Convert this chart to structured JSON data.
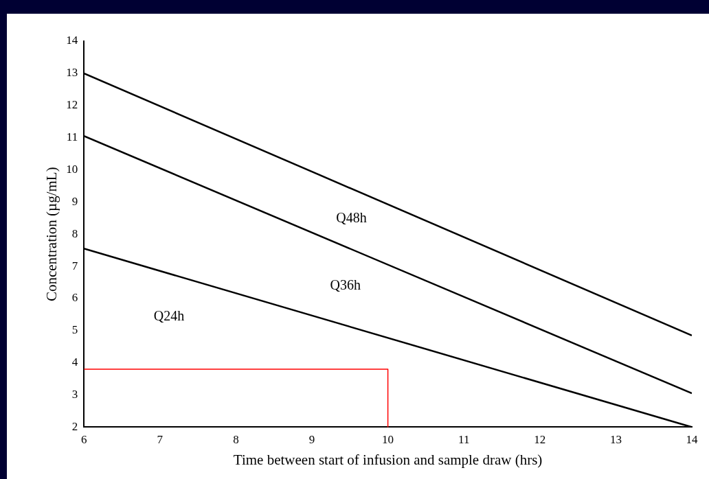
{
  "chart_data": {
    "type": "line",
    "xlabel": "Time between start of infusion and sample draw (hrs)",
    "ylabel": "Concentration (µg/mL)",
    "xlim": [
      6,
      14
    ],
    "xticks": [
      6,
      7,
      8,
      9,
      10,
      11,
      12,
      13,
      14
    ],
    "ylim": [
      2,
      14
    ],
    "yticks": [
      2,
      3,
      4,
      5,
      6,
      7,
      8,
      9,
      10,
      11,
      12,
      13,
      14
    ],
    "grid": false,
    "legend": false,
    "marker": "none",
    "line_style": "solid",
    "series": [
      {
        "color": "#000000",
        "x": [
          6,
          14
        ],
        "values": [
          13,
          4.85
        ]
      },
      {
        "color": "#000000",
        "x": [
          6,
          14
        ],
        "values": [
          11.05,
          3.05
        ]
      },
      {
        "color": "#000000",
        "x": [
          6,
          14
        ],
        "values": [
          7.55,
          2
        ]
      },
      {
        "color": "#ff0000",
        "x": [
          6,
          10,
          10
        ],
        "values": [
          3.8,
          3.8,
          2
        ]
      }
    ],
    "annotations": [
      "Q48h",
      "Q36h",
      "Q24h"
    ]
  }
}
